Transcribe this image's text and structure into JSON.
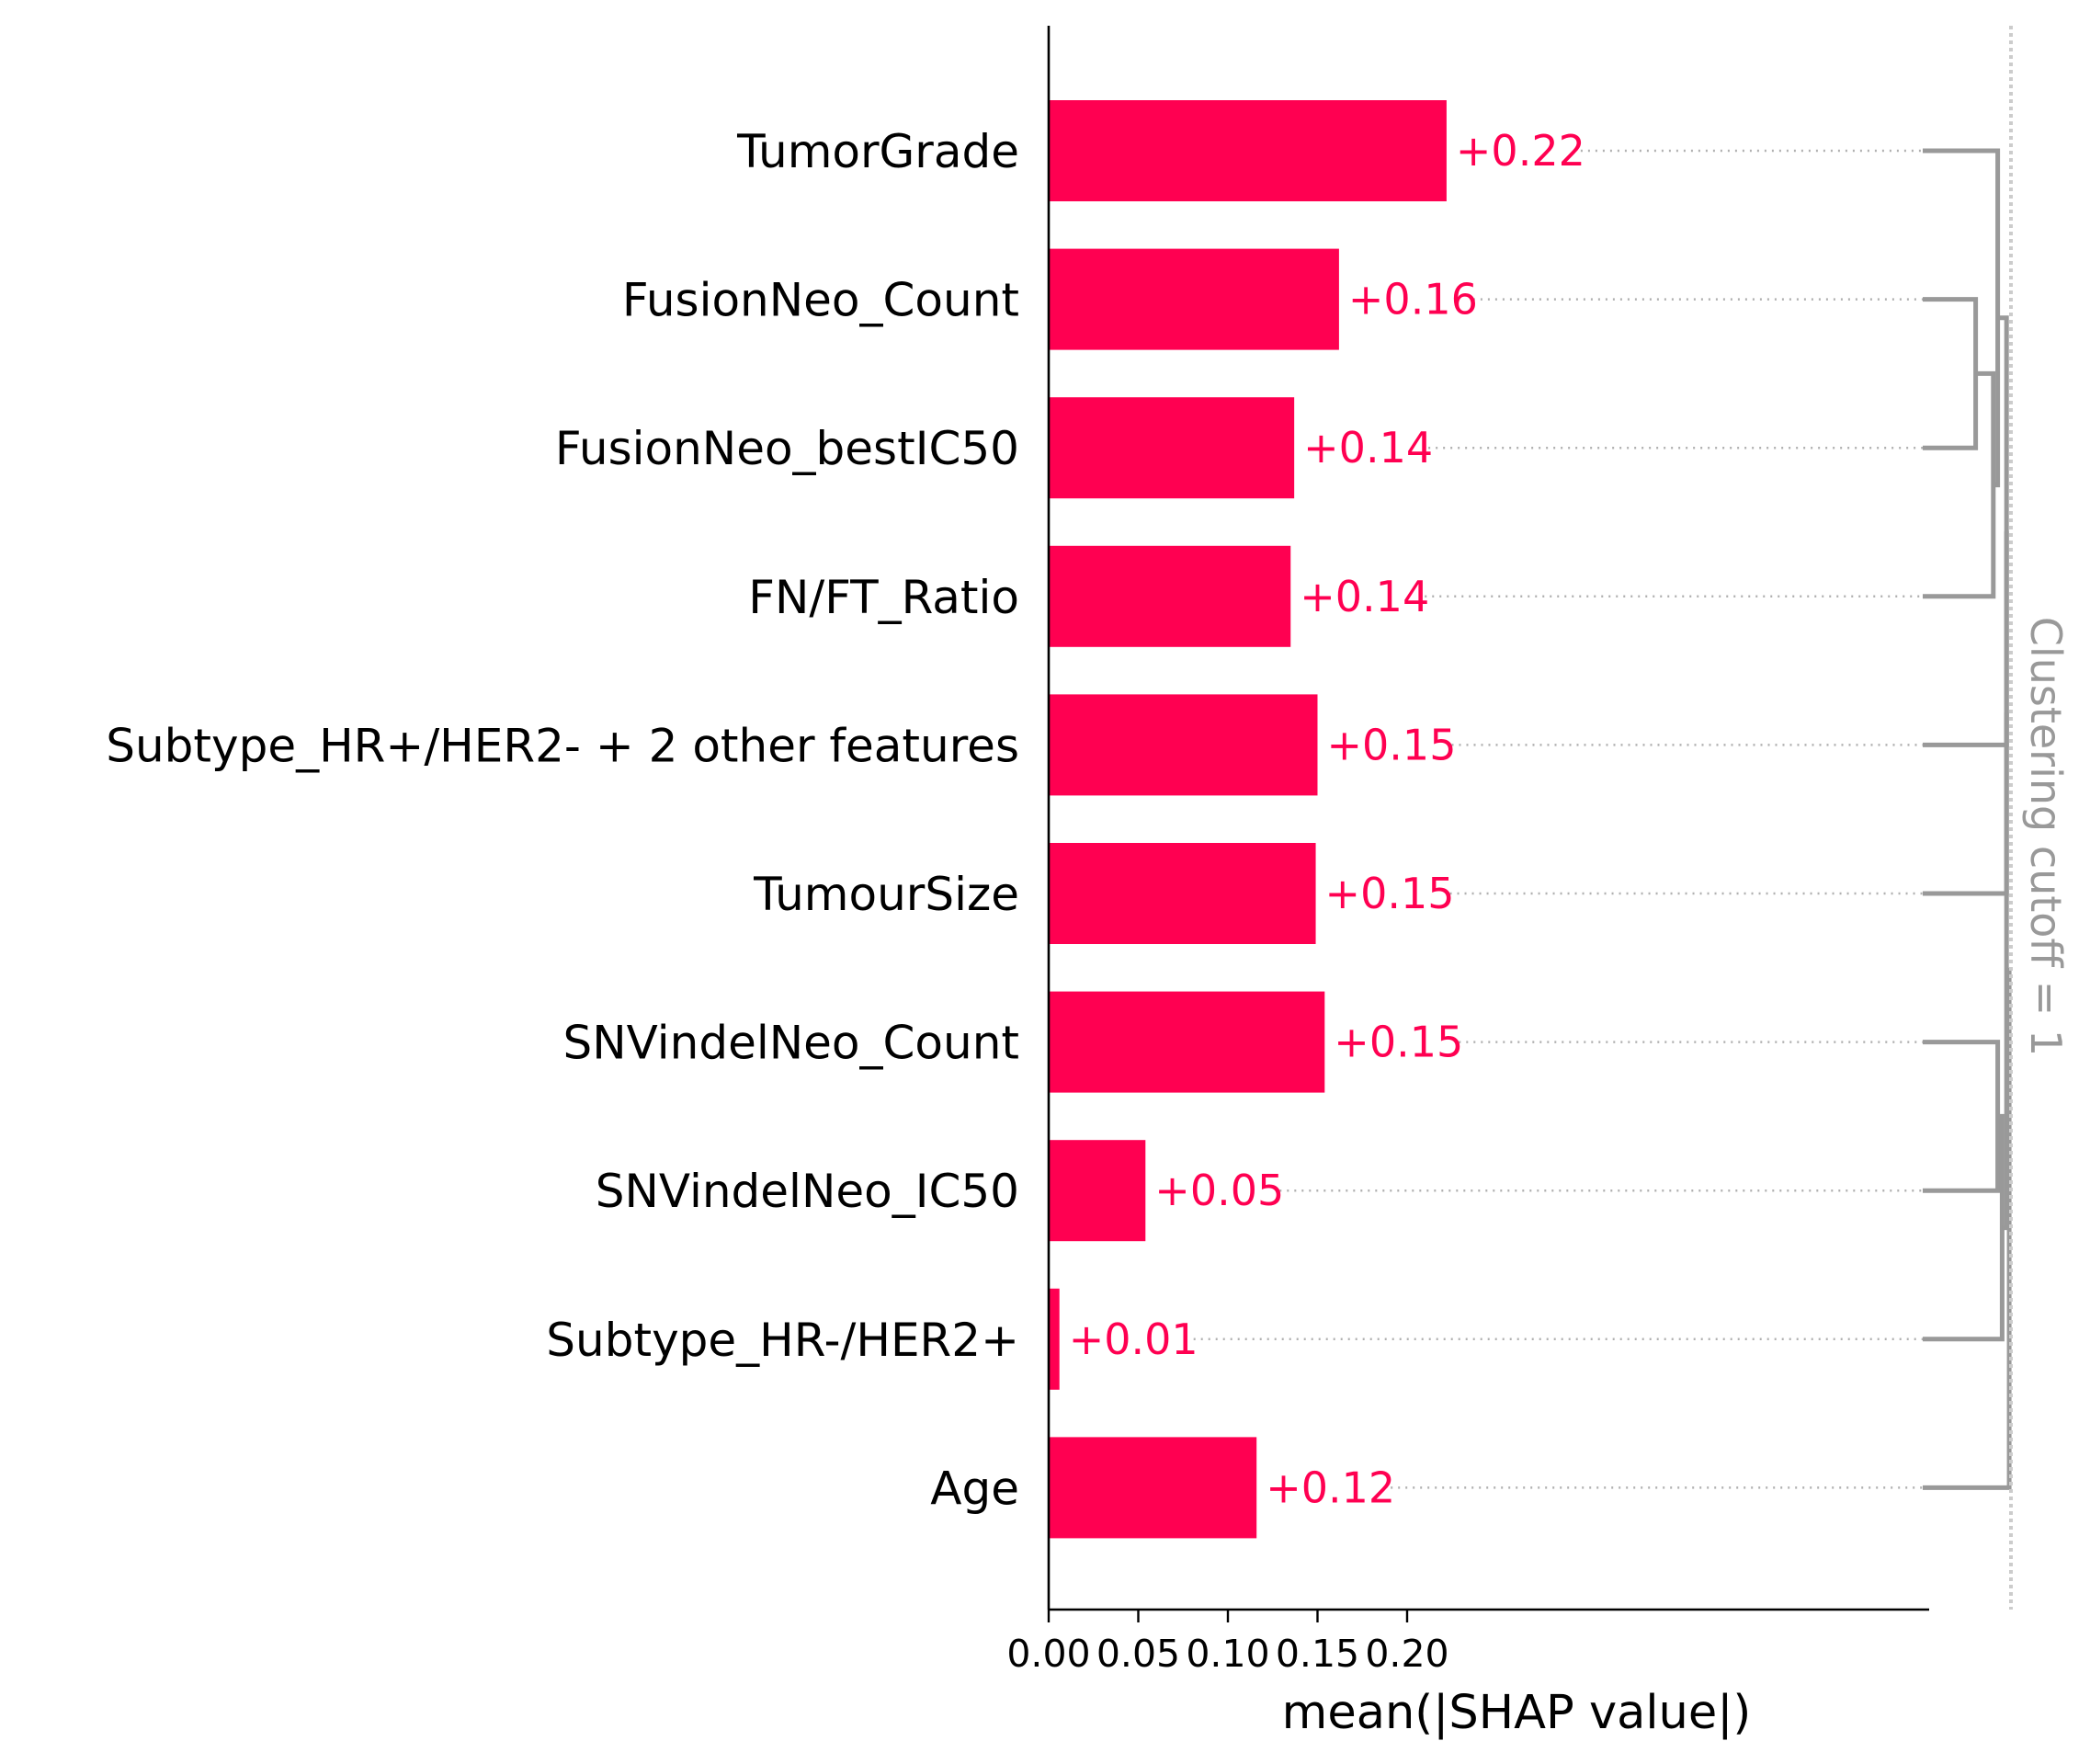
{
  "chart_data": {
    "type": "bar",
    "orientation": "horizontal",
    "categories": [
      "TumorGrade",
      "FusionNeo_Count",
      "FusionNeo_bestIC50",
      "FN/FT_Ratio",
      "Subtype_HR+/HER2- + 2 other features",
      "TumourSize",
      "SNVindelNeo_Count",
      "SNVindelNeo_IC50",
      "Subtype_HR-/HER2+",
      "Age"
    ],
    "values": [
      0.222,
      0.162,
      0.137,
      0.135,
      0.15,
      0.149,
      0.154,
      0.054,
      0.006,
      0.116
    ],
    "value_labels": [
      "+0.22",
      "+0.16",
      "+0.14",
      "+0.14",
      "+0.15",
      "+0.15",
      "+0.15",
      "+0.05",
      "+0.01",
      "+0.12"
    ],
    "xlabel": "mean(|SHAP value|)",
    "ylabel": "",
    "xlim": [
      0,
      0.246
    ],
    "xticks": [
      0.0,
      0.05,
      0.1,
      0.15,
      0.2
    ],
    "xtick_labels": [
      "0.00",
      "0.05",
      "0.10",
      "0.15",
      "0.20"
    ],
    "grid": false,
    "bar_color": "#ff0051",
    "value_label_color": "#ff0051",
    "clustering": {
      "label": "Clustering cutoff = 1",
      "color": "#999999",
      "cutoff_line_color": "#cccccc",
      "merge_distance_max": 1,
      "merges": [
        {
          "a": 1,
          "b": 2,
          "distance": 0.6
        },
        {
          "a": 3,
          "b": "m0",
          "distance": 0.8
        },
        {
          "a": 0,
          "b": "m1",
          "distance": 0.85
        },
        {
          "a": 6,
          "b": 7,
          "distance": 0.85
        },
        {
          "a": 8,
          "b": "m3",
          "distance": 0.9
        },
        {
          "a": "m2",
          "b": 4,
          "distance": 0.95
        },
        {
          "a": "m5",
          "b": 5,
          "distance": 0.95
        },
        {
          "a": "m4",
          "b": "m6",
          "distance": 0.95
        },
        {
          "a": 9,
          "b": "m7",
          "distance": 0.98
        }
      ]
    }
  }
}
